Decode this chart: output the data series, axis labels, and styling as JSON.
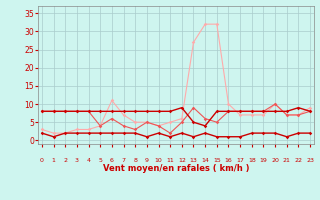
{
  "x": [
    0,
    1,
    2,
    3,
    4,
    5,
    6,
    7,
    8,
    9,
    10,
    11,
    12,
    13,
    14,
    15,
    16,
    17,
    18,
    19,
    20,
    21,
    22,
    23
  ],
  "vent_moyen": [
    2,
    1,
    2,
    2,
    2,
    2,
    2,
    2,
    2,
    1,
    2,
    1,
    2,
    1,
    2,
    1,
    1,
    1,
    2,
    2,
    2,
    1,
    2,
    2
  ],
  "dark_line": [
    8,
    8,
    8,
    8,
    8,
    8,
    8,
    8,
    8,
    8,
    8,
    8,
    9,
    5,
    4,
    8,
    8,
    8,
    8,
    8,
    8,
    8,
    9,
    8
  ],
  "medium_line": [
    8,
    8,
    8,
    8,
    8,
    4,
    6,
    4,
    3,
    5,
    4,
    2,
    5,
    9,
    6,
    5,
    8,
    8,
    8,
    8,
    10,
    7,
    7,
    8
  ],
  "light_line": [
    3,
    2,
    2,
    3,
    3,
    4,
    11,
    7,
    5,
    5,
    4,
    5,
    6,
    27,
    32,
    32,
    10,
    7,
    7,
    7,
    10,
    7,
    7,
    9
  ],
  "bg_color": "#cef5ef",
  "grid_color": "#aacccc",
  "dark_red": "#cc0000",
  "med_red": "#ee5555",
  "light_pink": "#ffaaaa",
  "xlabel": "Vent moyen/en rafales ( km/h )",
  "ylim": [
    -1,
    37
  ],
  "yticks": [
    0,
    5,
    10,
    15,
    20,
    25,
    30,
    35
  ],
  "xticks": [
    0,
    1,
    2,
    3,
    4,
    5,
    6,
    7,
    8,
    9,
    10,
    11,
    12,
    13,
    14,
    15,
    16,
    17,
    18,
    19,
    20,
    21,
    22,
    23
  ],
  "arrows": [
    "↗",
    "↗",
    "→",
    "←",
    "↑",
    "↖",
    "←",
    "↗",
    "↗",
    "↑",
    "↗",
    "↑",
    "→",
    "↗",
    "↑",
    "→",
    "↗",
    "↖",
    "↗",
    "↗",
    "↑",
    "↖",
    "↑",
    "↗"
  ]
}
